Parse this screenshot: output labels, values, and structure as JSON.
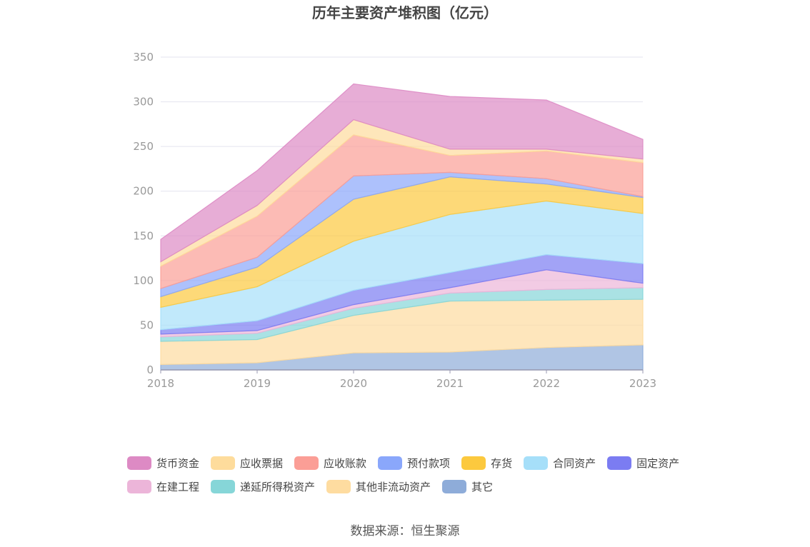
{
  "title": "历年主要资产堆积图（亿元）",
  "source": "数据来源：恒生聚源",
  "chart_data": {
    "type": "area",
    "stacked": true,
    "title": "历年主要资产堆积图（亿元）",
    "x": [
      "2018",
      "2019",
      "2020",
      "2021",
      "2022",
      "2023"
    ],
    "ylim": [
      0,
      350
    ],
    "yticks": [
      0,
      50,
      100,
      150,
      200,
      250,
      300,
      350
    ],
    "grid": true,
    "legend_position": "bottom",
    "series": [
      {
        "name": "其它",
        "color": "#8eacd9",
        "values": [
          6,
          8,
          19,
          20,
          25,
          28
        ]
      },
      {
        "name": "其他非流动资产",
        "color": "#fedca0",
        "values": [
          26,
          26,
          42,
          57,
          53,
          51
        ]
      },
      {
        "name": "递延所得税资产",
        "color": "#86d6d8",
        "values": [
          5,
          7,
          8,
          9,
          12,
          13
        ]
      },
      {
        "name": "在建工程",
        "color": "#ecb5d9",
        "values": [
          3,
          3,
          4,
          6,
          22,
          5
        ]
      },
      {
        "name": "固定资产",
        "color": "#7b7cf2",
        "values": [
          5,
          11,
          16,
          17,
          17,
          22
        ]
      },
      {
        "name": "合同资产",
        "color": "#a6dff9",
        "values": [
          25,
          38,
          55,
          65,
          60,
          56
        ]
      },
      {
        "name": "存货",
        "color": "#fcc93e",
        "values": [
          12,
          22,
          47,
          42,
          19,
          18
        ]
      },
      {
        "name": "预付款项",
        "color": "#8aa7fb",
        "values": [
          9,
          11,
          26,
          5,
          6,
          1
        ]
      },
      {
        "name": "应收账款",
        "color": "#fb9e96",
        "values": [
          25,
          46,
          46,
          19,
          31,
          38
        ]
      },
      {
        "name": "应收票据",
        "color": "#fedc9c",
        "values": [
          5,
          12,
          17,
          7,
          2,
          4
        ]
      },
      {
        "name": "货币资金",
        "color": "#dd8ac4",
        "values": [
          25,
          39,
          40,
          59,
          55,
          22
        ]
      }
    ]
  },
  "legend_order": [
    [
      "货币资金",
      "应收票据",
      "应收账款",
      "预付款项",
      "存货",
      "合同资产",
      "固定资产"
    ],
    [
      "在建工程",
      "递延所得税资产",
      "其他非流动资产",
      "其它"
    ]
  ]
}
